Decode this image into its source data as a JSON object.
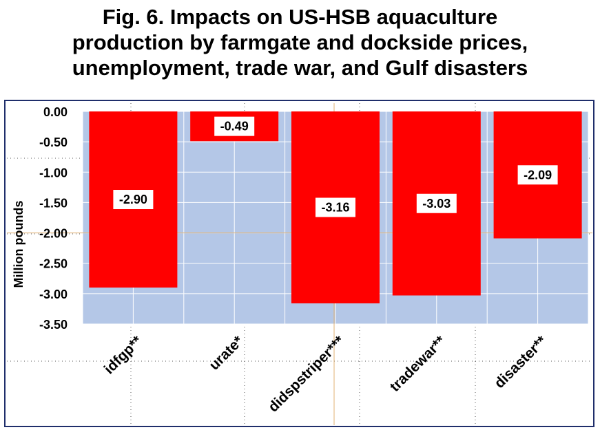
{
  "chart_data": {
    "type": "bar",
    "title_lines": [
      "Fig. 6. Impacts on US-HSB aquaculture",
      "production by farmgate and dockside prices,",
      "unemployment, trade war, and Gulf disasters"
    ],
    "ylabel": "Million pounds",
    "xlabel": "",
    "categories": [
      "idfgp**",
      "urate*",
      "didspstriper***",
      "tradewar**",
      "disaster**"
    ],
    "values": [
      -2.9,
      -0.49,
      -3.16,
      -3.03,
      -2.09
    ],
    "data_labels": [
      "-2.90",
      "-0.49",
      "-3.16",
      "-3.03",
      "-2.09"
    ],
    "ylim": [
      -3.5,
      0
    ],
    "yticks": [
      0,
      -0.5,
      -1.0,
      -1.5,
      -2.0,
      -2.5,
      -3.0,
      -3.5
    ],
    "ytick_labels": [
      "0.00",
      "-0.50",
      "-1.00",
      "-1.50",
      "-2.00",
      "-2.50",
      "-3.00",
      "-3.50"
    ],
    "grid": true,
    "legend": "none",
    "colors": {
      "bar": "#ff0000",
      "plot_background": "#b4c7e7",
      "frame": "#1f2e6b",
      "grid_major": "#e0b070",
      "label_box": "#ffffff"
    }
  }
}
